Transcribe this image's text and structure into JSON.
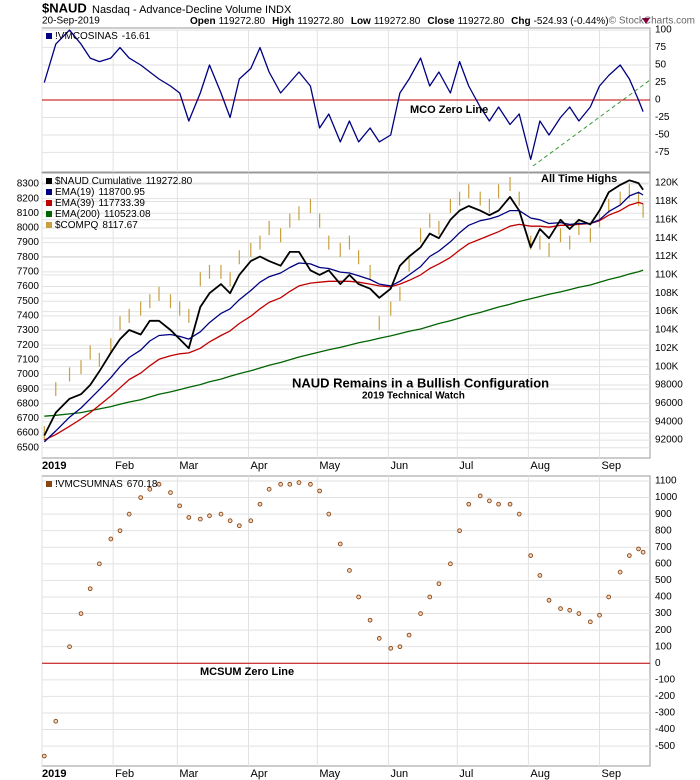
{
  "header": {
    "symbol": "$NAUD",
    "description": "Nasdaq - Advance-Decline Volume INDX",
    "date": "20-Sep-2019",
    "quote": [
      {
        "label": "Open",
        "value": "119272.80"
      },
      {
        "label": "High",
        "value": "119272.80"
      },
      {
        "label": "Low",
        "value": "119272.80"
      },
      {
        "label": "Close",
        "value": "119272.80"
      },
      {
        "label": "Chg",
        "value": "-524.93 (-0.44%)"
      }
    ],
    "credit": "© StockCharts.com"
  },
  "chart_data": [
    {
      "type": "line",
      "x": [
        1,
        6,
        12,
        17,
        21,
        25,
        30,
        34,
        38,
        43,
        47,
        51,
        56,
        60,
        64,
        69,
        73,
        78,
        82,
        86,
        91,
        95,
        99,
        104,
        108,
        112,
        117,
        121,
        125,
        130,
        134,
        138,
        143,
        147,
        152,
        156,
        160,
        165,
        169,
        173,
        178,
        182,
        186,
        191,
        195,
        199,
        204,
        208,
        213,
        217,
        221,
        226,
        230,
        234,
        239,
        243,
        247,
        252,
        256,
        260,
        262
      ],
      "series": [
        {
          "name": "!VMCOSINAS",
          "color": "#000080",
          "values": [
            25,
            80,
            100,
            80,
            60,
            55,
            60,
            75,
            60,
            50,
            40,
            30,
            20,
            10,
            -30,
            10,
            50,
            10,
            -25,
            30,
            45,
            75,
            40,
            10,
            25,
            40,
            20,
            -40,
            -20,
            -60,
            -30,
            -60,
            -40,
            -60,
            -50,
            10,
            30,
            60,
            20,
            40,
            10,
            55,
            20,
            -10,
            -30,
            -10,
            -35,
            -20,
            -85,
            -30,
            -50,
            -25,
            -10,
            -30,
            -10,
            20,
            35,
            50,
            30,
            0,
            -16.61
          ]
        }
      ],
      "xlim": [
        0,
        265
      ],
      "xticks": [
        0,
        31,
        59,
        90,
        120,
        151,
        181,
        212,
        243
      ],
      "ylim": [
        -103,
        103
      ],
      "yticks": [
        100,
        75,
        50,
        25,
        0,
        -25,
        -50,
        -75
      ],
      "yaxis_side": "right",
      "grid": true,
      "hline": 0,
      "annotations": [
        "MCO Zero Line"
      ]
    },
    {
      "type": "line",
      "x": [
        1,
        6,
        12,
        17,
        21,
        25,
        30,
        34,
        38,
        43,
        47,
        51,
        56,
        60,
        64,
        69,
        73,
        78,
        82,
        86,
        91,
        95,
        99,
        104,
        108,
        112,
        117,
        121,
        125,
        130,
        134,
        138,
        143,
        147,
        152,
        156,
        160,
        165,
        169,
        173,
        178,
        182,
        186,
        191,
        195,
        199,
        204,
        208,
        213,
        217,
        221,
        226,
        230,
        234,
        239,
        243,
        247,
        252,
        256,
        260,
        262
      ],
      "series": [
        {
          "name": "$NAUD Cumulative",
          "color": "#000000",
          "axis": "y2",
          "last_value_label": "119272.80",
          "values": [
            92500,
            95000,
            96500,
            97000,
            98000,
            99500,
            101500,
            103000,
            104000,
            103500,
            105000,
            105000,
            104000,
            103000,
            102000,
            106500,
            108000,
            109000,
            108000,
            110000,
            111500,
            112000,
            111500,
            111000,
            112500,
            112500,
            110500,
            110000,
            110500,
            109000,
            110000,
            109000,
            108500,
            107500,
            108500,
            111000,
            112000,
            113000,
            114500,
            114000,
            116000,
            117000,
            117500,
            117000,
            116500,
            117000,
            118500,
            117000,
            113000,
            115000,
            114000,
            116000,
            115000,
            116000,
            115500,
            117000,
            119000,
            119800,
            120300,
            120000,
            119272.8
          ]
        },
        {
          "name": "EMA(19)",
          "color": "#000080",
          "axis": "y2",
          "last_value_label": "118700.95",
          "values": [
            91800,
            93000,
            94500,
            95500,
            96500,
            97500,
            98800,
            100000,
            101000,
            101800,
            102800,
            103400,
            103500,
            103300,
            103000,
            103800,
            104800,
            105800,
            106300,
            107300,
            108300,
            109200,
            109800,
            110200,
            110800,
            111300,
            111200,
            110800,
            110700,
            110300,
            110200,
            109900,
            109500,
            109000,
            108800,
            109300,
            110000,
            110900,
            112000,
            112600,
            113600,
            114600,
            115400,
            115900,
            116100,
            116400,
            117000,
            117000,
            116200,
            116000,
            115600,
            115700,
            115500,
            115600,
            115600,
            116000,
            116900,
            117600,
            118600,
            119000,
            118700.95
          ]
        },
        {
          "name": "EMA(39)",
          "color": "#c00000",
          "axis": "y2",
          "last_value_label": "117733.39",
          "values": [
            92000,
            92600,
            93500,
            94300,
            95000,
            95800,
            96800,
            97700,
            98600,
            99300,
            100100,
            100800,
            101200,
            101400,
            101500,
            102000,
            102700,
            103400,
            103900,
            104700,
            105500,
            106300,
            107000,
            107500,
            108200,
            108800,
            109100,
            109200,
            109300,
            109300,
            109300,
            109200,
            109000,
            108800,
            108700,
            109000,
            109400,
            110000,
            110700,
            111200,
            111900,
            112700,
            113400,
            113900,
            114300,
            114700,
            115300,
            115500,
            115300,
            115300,
            115200,
            115400,
            115400,
            115500,
            115600,
            115900,
            116500,
            117000,
            117600,
            117900,
            117733.39
          ]
        },
        {
          "name": "EMA(200)",
          "color": "#006400",
          "axis": "y2",
          "last_value_label": "110523.08",
          "values": [
            94600,
            94700,
            94850,
            95000,
            95200,
            95400,
            95650,
            95900,
            96150,
            96400,
            96700,
            97000,
            97250,
            97500,
            97750,
            98050,
            98350,
            98650,
            98950,
            99250,
            99550,
            99850,
            100150,
            100450,
            100750,
            101050,
            101350,
            101600,
            101850,
            102100,
            102350,
            102600,
            102850,
            103100,
            103350,
            103600,
            103850,
            104100,
            104400,
            104700,
            105000,
            105300,
            105600,
            105900,
            106200,
            106500,
            106800,
            107100,
            107400,
            107650,
            107900,
            108150,
            108400,
            108650,
            108900,
            109200,
            109500,
            109800,
            110100,
            110350,
            110523.08
          ]
        },
        {
          "name": "$COMPQ",
          "color": "#c8a040",
          "axis": "y",
          "marker": "bar",
          "last_value_label": "8117.67",
          "values": [
            6600,
            6900,
            7000,
            7050,
            7150,
            7100,
            7200,
            7350,
            7400,
            7450,
            7500,
            7550,
            7500,
            7450,
            7400,
            7650,
            7700,
            7700,
            7650,
            7800,
            7850,
            7900,
            8000,
            7950,
            8050,
            8100,
            8150,
            8050,
            7900,
            7850,
            7900,
            7800,
            7700,
            7350,
            7450,
            7550,
            7750,
            7950,
            8050,
            8000,
            8150,
            8200,
            8250,
            8200,
            8150,
            8250,
            8300,
            8200,
            7900,
            7900,
            7850,
            7950,
            7900,
            8000,
            7950,
            8050,
            8150,
            8200,
            8250,
            8200,
            8117.67
          ]
        }
      ],
      "xlim": [
        0,
        265
      ],
      "xticks": [
        {
          "value": 0,
          "label": "2019"
        },
        {
          "value": 31,
          "label": "Feb"
        },
        {
          "value": 59,
          "label": "Mar"
        },
        {
          "value": 90,
          "label": "Apr"
        },
        {
          "value": 120,
          "label": "May"
        },
        {
          "value": 151,
          "label": "Jun"
        },
        {
          "value": 181,
          "label": "Jul"
        },
        {
          "value": 212,
          "label": "Aug"
        },
        {
          "value": 243,
          "label": "Sep"
        }
      ],
      "ylim": [
        6430,
        8375
      ],
      "yticks": [
        6500,
        6600,
        6700,
        6800,
        6900,
        7000,
        7100,
        7200,
        7300,
        7400,
        7500,
        7600,
        7700,
        7800,
        7900,
        8000,
        8100,
        8200,
        8300
      ],
      "yaxis_side": "left",
      "y2lim": [
        90050,
        121100
      ],
      "y2ticks": [
        92000,
        94000,
        96000,
        98000,
        {
          "value": 100000,
          "label": "100K"
        },
        {
          "value": 102000,
          "label": "102K"
        },
        {
          "value": 104000,
          "label": "104K"
        },
        {
          "value": 106000,
          "label": "106K"
        },
        {
          "value": 108000,
          "label": "108K"
        },
        {
          "value": 110000,
          "label": "110K"
        },
        {
          "value": 112000,
          "label": "112K"
        },
        {
          "value": 114000,
          "label": "114K"
        },
        {
          "value": 116000,
          "label": "116K"
        },
        {
          "value": 118000,
          "label": "118K"
        },
        {
          "value": 120000,
          "label": "120K"
        }
      ],
      "grid": true,
      "annotations": [
        "All Time Highs",
        "NAUD Remains in a Bullish Configuration",
        "2019 Technical Watch"
      ]
    },
    {
      "type": "scatter",
      "x": [
        1,
        6,
        12,
        17,
        21,
        25,
        30,
        34,
        38,
        43,
        47,
        51,
        56,
        60,
        64,
        69,
        73,
        78,
        82,
        86,
        91,
        95,
        99,
        104,
        108,
        112,
        117,
        121,
        125,
        130,
        134,
        138,
        143,
        147,
        152,
        156,
        160,
        165,
        169,
        173,
        178,
        182,
        186,
        191,
        195,
        199,
        204,
        208,
        213,
        217,
        221,
        226,
        230,
        234,
        239,
        243,
        247,
        252,
        256,
        260,
        262
      ],
      "series": [
        {
          "name": "!VMCSUMNAS",
          "color": "#8b4513",
          "values": [
            -560,
            -350,
            100,
            300,
            450,
            600,
            750,
            800,
            900,
            1000,
            1050,
            1080,
            1030,
            950,
            880,
            870,
            890,
            900,
            860,
            830,
            860,
            960,
            1050,
            1080,
            1080,
            1090,
            1080,
            1040,
            900,
            720,
            560,
            400,
            260,
            150,
            90,
            100,
            170,
            300,
            400,
            480,
            600,
            800,
            960,
            1010,
            980,
            960,
            960,
            900,
            650,
            530,
            380,
            330,
            320,
            300,
            250,
            290,
            400,
            550,
            650,
            690,
            670.18
          ]
        }
      ],
      "xlim": [
        0,
        265
      ],
      "xticks": [
        {
          "value": 0,
          "label": "2019"
        },
        {
          "value": 31,
          "label": "Feb"
        },
        {
          "value": 59,
          "label": "Mar"
        },
        {
          "value": 90,
          "label": "Apr"
        },
        {
          "value": 120,
          "label": "May"
        },
        {
          "value": 151,
          "label": "Jun"
        },
        {
          "value": 181,
          "label": "Jul"
        },
        {
          "value": 212,
          "label": "Aug"
        },
        {
          "value": 243,
          "label": "Sep"
        }
      ],
      "ylim": [
        -620,
        1130
      ],
      "yticks": [
        1100,
        1000,
        900,
        800,
        700,
        600,
        500,
        400,
        300,
        200,
        100,
        0,
        -100,
        -200,
        -300,
        -400,
        -500
      ],
      "yaxis_side": "right",
      "grid": true,
      "hline": 0,
      "annotations": [
        "MCSUM Zero Line"
      ]
    }
  ]
}
